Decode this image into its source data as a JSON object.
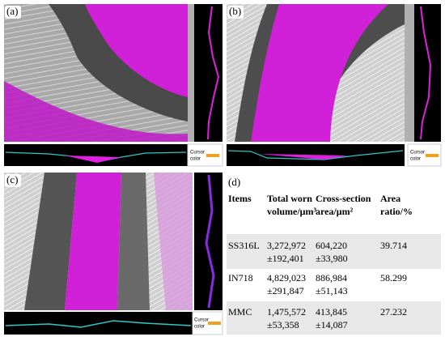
{
  "panels": [
    {
      "label": "(a)",
      "cursor_label": [
        "Cursor",
        "color"
      ]
    },
    {
      "label": "(b)",
      "cursor_label": [
        "Cursor",
        "color"
      ]
    },
    {
      "label": "(c)",
      "cursor_label": [
        "Cursor",
        "color"
      ]
    }
  ],
  "table": {
    "label": "(d)",
    "header": [
      [
        "Items"
      ],
      [
        "Total worn",
        "volume/μm³"
      ],
      [
        "Cross-section",
        "area/μm²"
      ],
      [
        "Area",
        "ratio/%"
      ]
    ],
    "rows": [
      [
        [
          "SS316L"
        ],
        [
          "3,272,972",
          "±192,401"
        ],
        [
          "604,220",
          "±33,980"
        ],
        [
          "39.714"
        ]
      ],
      [
        [
          "IN718"
        ],
        [
          "4,829,023",
          "±291,847"
        ],
        [
          "886,984",
          "±51,143"
        ],
        [
          "58.299"
        ]
      ],
      [
        [
          "MMC"
        ],
        [
          "1,475,572",
          "±53,358"
        ],
        [
          "413,845",
          "±14,087"
        ],
        [
          "27.232"
        ]
      ]
    ]
  }
}
